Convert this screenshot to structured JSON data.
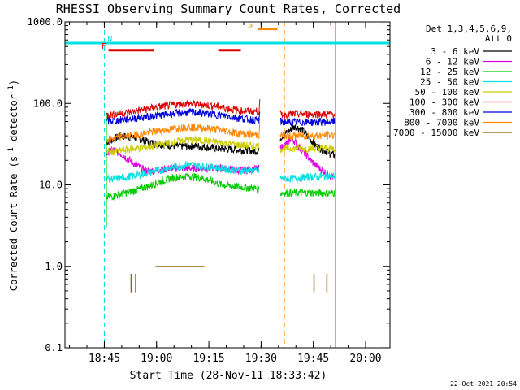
{
  "chart_data": {
    "type": "line",
    "title": "RHESSI Observing Summary Count Rates, Corrected",
    "xlabel": "Start Time (28-Nov-11 18:33:42)",
    "ylabel_main": "Corrected Count Rate (s",
    "ylabel_sup1": "-1",
    "ylabel_mid": " detector",
    "ylabel_sup2": "-1",
    "ylabel_end": ")",
    "y_scale": "log",
    "ylim": [
      0.1,
      1000
    ],
    "xlim": [
      "18:33:42",
      "20:07:00"
    ],
    "xlim_min": [
      0,
      93.3
    ],
    "x_ticks": [
      {
        "label": "18:45",
        "min": 11.3
      },
      {
        "label": "19:00",
        "min": 26.3
      },
      {
        "label": "19:15",
        "min": 41.3
      },
      {
        "label": "19:30",
        "min": 56.3
      },
      {
        "label": "19:45",
        "min": 71.3
      },
      {
        "label": "20:00",
        "min": 86.3
      }
    ],
    "y_ticks": [
      {
        "label": "1000.0",
        "v": 1000
      },
      {
        "label": "100.0",
        "v": 100
      },
      {
        "label": "10.0",
        "v": 10
      },
      {
        "label": "1.0",
        "v": 1
      },
      {
        "label": "0.1",
        "v": 0.1
      }
    ],
    "legend_header": [
      "Det 1,3,4,5,6,9,",
      "Att 0"
    ],
    "legend_placement": "right",
    "series": [
      {
        "name": "3 - 6 keV",
        "color": "#000000",
        "seg1": [
          [
            11.9,
            33
          ],
          [
            16,
            40
          ],
          [
            20,
            38
          ],
          [
            26,
            32
          ],
          [
            32,
            30
          ],
          [
            38,
            30
          ],
          [
            44,
            28
          ],
          [
            50,
            27
          ],
          [
            55.7,
            26
          ]
        ],
        "seg2": [
          [
            61.8,
            38
          ],
          [
            64,
            45
          ],
          [
            66,
            52
          ],
          [
            68,
            48
          ],
          [
            70,
            38
          ],
          [
            72,
            30
          ],
          [
            75,
            26
          ],
          [
            77.4,
            23
          ]
        ]
      },
      {
        "name": "6 - 12 keV",
        "color": "#dd00dd",
        "seg1": [
          [
            11.9,
            24
          ],
          [
            14,
            27
          ],
          [
            16,
            24
          ],
          [
            18,
            21
          ],
          [
            20,
            18
          ],
          [
            23,
            15
          ],
          [
            26,
            15
          ],
          [
            30,
            16
          ],
          [
            35,
            16
          ],
          [
            40,
            16
          ],
          [
            45,
            16
          ],
          [
            50,
            15
          ],
          [
            55.7,
            16
          ]
        ],
        "seg2": [
          [
            61.8,
            28
          ],
          [
            64,
            33
          ],
          [
            65,
            38
          ],
          [
            67,
            30
          ],
          [
            69,
            24
          ],
          [
            71,
            19
          ],
          [
            73,
            16
          ],
          [
            75,
            14
          ],
          [
            77.4,
            12
          ]
        ]
      },
      {
        "name": "12 - 25 keV",
        "color": "#00cc00",
        "seg1": [
          [
            11.9,
            7
          ],
          [
            15,
            7.5
          ],
          [
            20,
            8.5
          ],
          [
            25,
            10
          ],
          [
            30,
            12
          ],
          [
            35,
            13
          ],
          [
            40,
            12
          ],
          [
            45,
            10
          ],
          [
            50,
            9.5
          ],
          [
            55.7,
            9
          ]
        ],
        "seg2": [
          [
            61.8,
            8
          ],
          [
            65,
            8
          ],
          [
            70,
            8
          ],
          [
            77.4,
            8
          ]
        ]
      },
      {
        "name": "25 - 50 keV",
        "color": "#00e0e0",
        "seg1": [
          [
            11.9,
            12
          ],
          [
            15,
            12
          ],
          [
            20,
            13
          ],
          [
            25,
            14.5
          ],
          [
            30,
            16
          ],
          [
            35,
            18
          ],
          [
            40,
            17
          ],
          [
            45,
            16
          ],
          [
            50,
            15
          ],
          [
            55.7,
            15
          ]
        ],
        "seg2": [
          [
            61.8,
            12
          ],
          [
            65,
            12
          ],
          [
            70,
            12.5
          ],
          [
            77.4,
            13
          ]
        ]
      },
      {
        "name": "50 - 100 keV",
        "color": "#cccc00",
        "seg1": [
          [
            11.9,
            25
          ],
          [
            15,
            26
          ],
          [
            20,
            28
          ],
          [
            25,
            30
          ],
          [
            30,
            33
          ],
          [
            35,
            36
          ],
          [
            40,
            35
          ],
          [
            45,
            33
          ],
          [
            50,
            31
          ],
          [
            55.7,
            30
          ]
        ],
        "seg2": [
          [
            61.8,
            28
          ],
          [
            65,
            28
          ],
          [
            70,
            28
          ],
          [
            77.4,
            28
          ]
        ]
      },
      {
        "name": "100 - 300 keV",
        "color": "#dd0000",
        "seg1": [
          [
            11.9,
            72
          ],
          [
            15,
            74
          ],
          [
            20,
            80
          ],
          [
            25,
            88
          ],
          [
            30,
            95
          ],
          [
            35,
            100
          ],
          [
            40,
            97
          ],
          [
            45,
            90
          ],
          [
            50,
            82
          ],
          [
            55.7,
            80
          ],
          [
            56,
            110
          ]
        ],
        "seg2": [
          [
            61.8,
            74
          ],
          [
            65,
            74
          ],
          [
            70,
            74
          ],
          [
            77.4,
            74
          ]
        ]
      },
      {
        "name": "300 - 800 keV",
        "color": "#0000dd",
        "seg1": [
          [
            11.9,
            60
          ],
          [
            15,
            62
          ],
          [
            20,
            66
          ],
          [
            25,
            70
          ],
          [
            30,
            74
          ],
          [
            35,
            78
          ],
          [
            40,
            76
          ],
          [
            45,
            72
          ],
          [
            50,
            66
          ],
          [
            55.7,
            62
          ],
          [
            56,
            85
          ]
        ],
        "seg2": [
          [
            61.8,
            60
          ],
          [
            65,
            59
          ],
          [
            70,
            59
          ],
          [
            77.4,
            60
          ]
        ]
      },
      {
        "name": "800 - 7000 keV",
        "color": "#ff8800",
        "seg1": [
          [
            11.9,
            36
          ],
          [
            15,
            38
          ],
          [
            20,
            41
          ],
          [
            25,
            45
          ],
          [
            30,
            48
          ],
          [
            35,
            52
          ],
          [
            40,
            50
          ],
          [
            45,
            47
          ],
          [
            50,
            43
          ],
          [
            55.7,
            41
          ],
          [
            56,
            55
          ]
        ],
        "seg2": [
          [
            61.8,
            41
          ],
          [
            65,
            40
          ],
          [
            70,
            40
          ],
          [
            77.4,
            41
          ]
        ]
      },
      {
        "name": "7000 - 15000 keV",
        "color": "#886600",
        "seg1": [
          [
            26,
            1
          ],
          [
            40,
            1
          ]
        ],
        "seg2": [],
        "drops": [
          [
            19,
            0.6
          ],
          [
            20.3,
            0.6
          ],
          [
            71.5,
            0.6
          ],
          [
            75.2,
            0.6
          ]
        ]
      }
    ],
    "markers": [
      {
        "label": "N",
        "color": "#00e0e0",
        "lines": [
          [
            0,
            1.5,
            85
          ],
          [
            73.5,
            93.3
          ]
        ]
      },
      {
        "label": "F",
        "color": "#dd0000",
        "lines": [
          [
            12.5,
            25.5
          ],
          [
            44,
            50.5
          ]
        ]
      },
      {
        "label": "S",
        "color": "#ff8800",
        "lines": [
          [
            55.5,
            61
          ]
        ]
      }
    ],
    "region_lines": [
      {
        "color": "#00e0e0",
        "style": "solid",
        "min": 0
      },
      {
        "color": "#00e0e0",
        "style": "dashed",
        "min": 11.3
      },
      {
        "color": "#ff8800",
        "style": "solid",
        "min": 54
      },
      {
        "color": "#ff8800",
        "style": "dashed",
        "min": 63
      },
      {
        "color": "#00e0e0",
        "style": "solid",
        "min": 77.6
      },
      {
        "color": "#00e0e0",
        "style": "dashed",
        "min": 94.5
      }
    ]
  },
  "footer": {
    "timestamp": "22-Oct-2021 20:54"
  }
}
